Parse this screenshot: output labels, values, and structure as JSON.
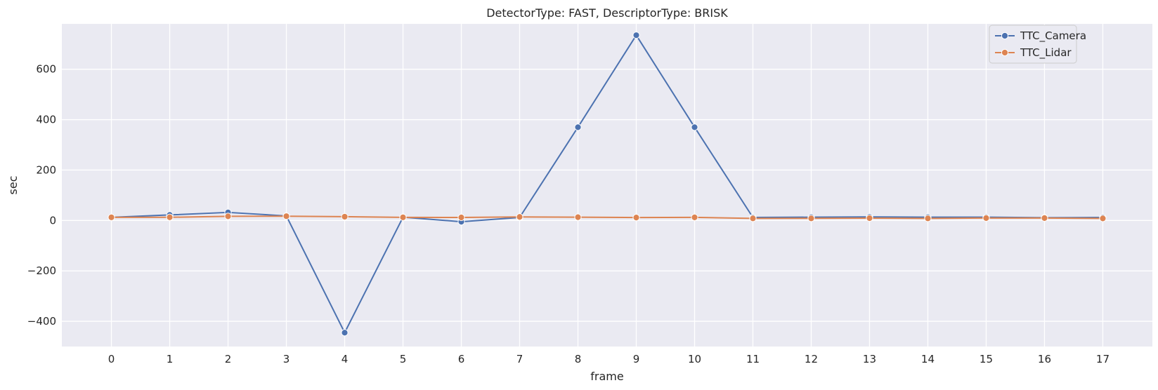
{
  "chart_data": {
    "type": "line",
    "title": "DetectorType: FAST, DescriptorType: BRISK",
    "xlabel": "frame",
    "ylabel": "sec",
    "x": [
      0,
      1,
      2,
      3,
      4,
      5,
      6,
      7,
      8,
      9,
      10,
      11,
      12,
      13,
      14,
      15,
      16,
      17
    ],
    "x_tick_labels": [
      "0",
      "1",
      "2",
      "3",
      "4",
      "5",
      "6",
      "7",
      "8",
      "9",
      "10",
      "11",
      "12",
      "13",
      "14",
      "15",
      "16",
      "17"
    ],
    "y_ticks": [
      -400,
      -200,
      0,
      200,
      400,
      600
    ],
    "y_tick_labels": [
      "−400",
      "−200",
      "0",
      "200",
      "400",
      "600"
    ],
    "xlim": [
      -0.85,
      17.85
    ],
    "ylim": [
      -500,
      780
    ],
    "grid": true,
    "legend": "top-right",
    "series": [
      {
        "name": "TTC_Camera",
        "color": "#4c72b0",
        "marker": "circle",
        "values": [
          12.5,
          22,
          32,
          18,
          -445,
          13,
          -5,
          12,
          370,
          735,
          370,
          12,
          13,
          14,
          13,
          13,
          11,
          12
        ]
      },
      {
        "name": "TTC_Lidar",
        "color": "#dd8452",
        "marker": "circle",
        "values": [
          12.5,
          12.6,
          16.5,
          17,
          15,
          12.5,
          12,
          14,
          13,
          11.7,
          12.3,
          8.3,
          8.4,
          9.3,
          8.3,
          9.5,
          9.5,
          8.2
        ]
      }
    ]
  }
}
